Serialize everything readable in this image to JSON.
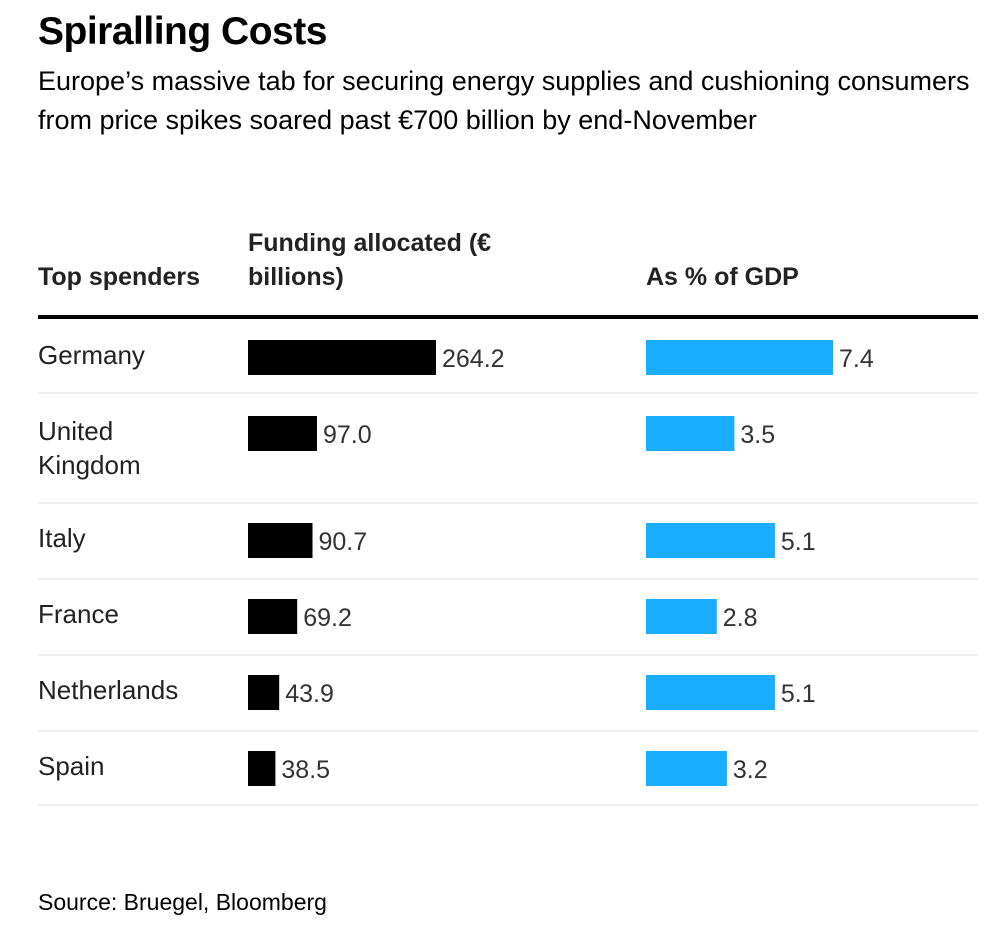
{
  "chart_data": {
    "type": "bar",
    "title": "Spiralling Costs",
    "subtitle": "Europe’s massive tab for securing energy supplies and cushioning consumers from price spikes soared past €700 billion by end-November",
    "column_headers": {
      "country": "Top spenders",
      "funding": "Funding allocated (€ billions)",
      "gdp": "As % of GDP"
    },
    "categories": [
      "Germany",
      "United Kingdom",
      "Italy",
      "France",
      "Netherlands",
      "Spain"
    ],
    "category_lines": [
      [
        "Germany"
      ],
      [
        "United",
        "Kingdom"
      ],
      [
        "Italy"
      ],
      [
        "France"
      ],
      [
        "Netherlands"
      ],
      [
        "Spain"
      ]
    ],
    "series": [
      {
        "name": "Funding allocated (€ billions)",
        "values": [
          264.2,
          97.0,
          90.7,
          69.2,
          43.9,
          38.5
        ],
        "labels": [
          "264.2",
          "97.0",
          "90.7",
          "69.2",
          "43.9",
          "38.5"
        ],
        "color": "#000000"
      },
      {
        "name": "As % of GDP",
        "values": [
          7.4,
          3.5,
          5.1,
          2.8,
          5.1,
          3.2
        ],
        "labels": [
          "7.4",
          "3.5",
          "5.1",
          "2.8",
          "5.1",
          "3.2"
        ],
        "color": "#1aadff"
      }
    ],
    "source": "Source: Bruegel, Bloomberg",
    "colors": {
      "funding_bar": "#000000",
      "gdp_bar": "#1aadff",
      "row_divider": "#e8e8e8",
      "header_rule": "#000000"
    },
    "grid": false,
    "legend": "none"
  }
}
